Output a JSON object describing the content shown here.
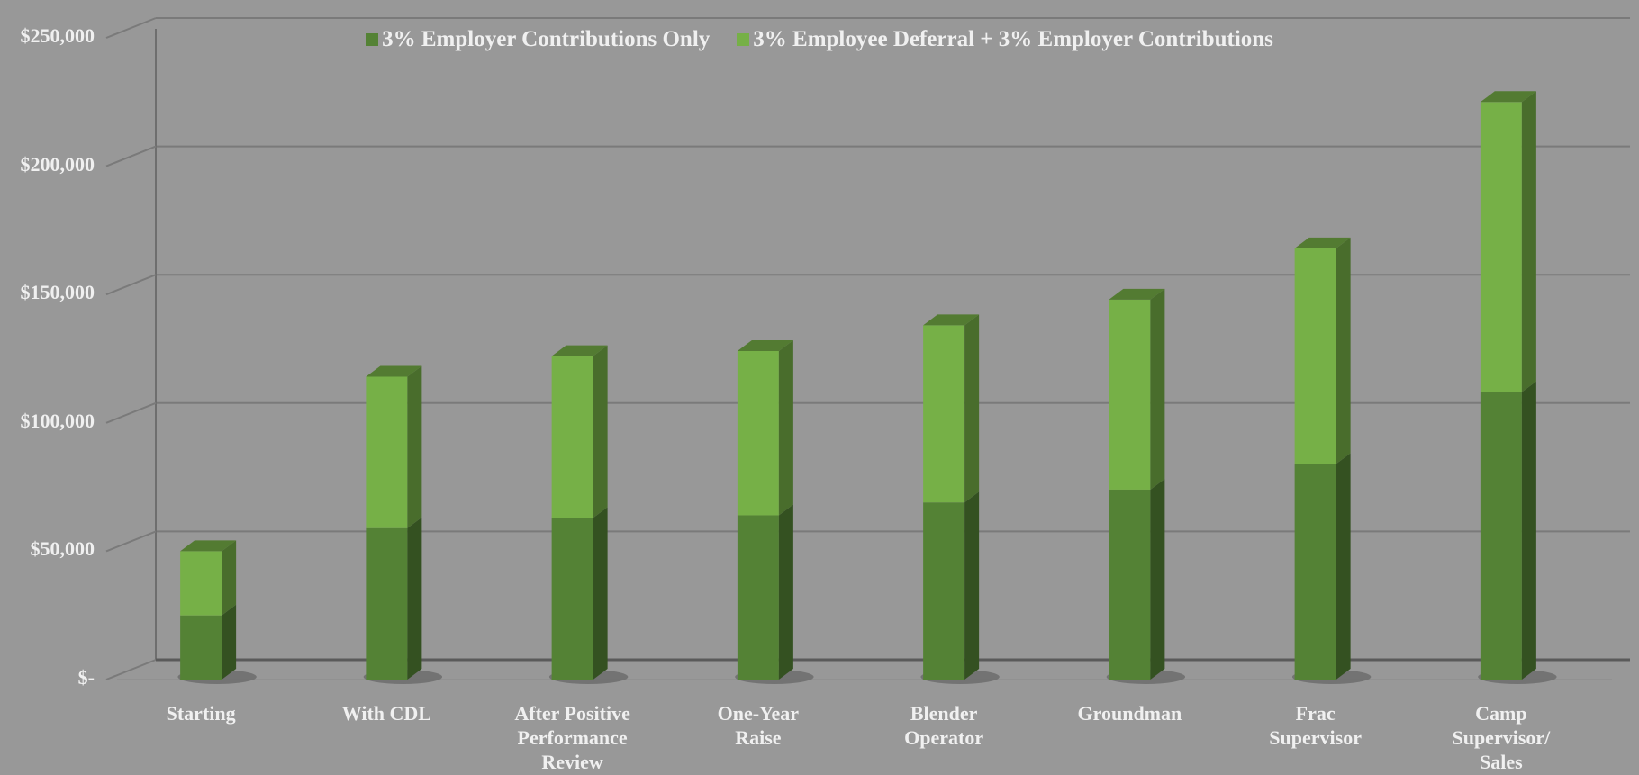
{
  "chart_data": {
    "type": "bar",
    "stacked": true,
    "style": "3d-column",
    "title": "",
    "xlabel": "",
    "ylabel": "",
    "ylim": [
      0,
      250000
    ],
    "yticks": [
      0,
      50000,
      100000,
      150000,
      200000,
      250000
    ],
    "ytick_labels": [
      "$-",
      "$50,000",
      "$100,000",
      "$150,000",
      "$200,000",
      "$250,000"
    ],
    "grid": true,
    "legend_position": "top",
    "categories": [
      "Starting",
      "With CDL",
      "After Positive\nPerformance\nReview",
      "One-Year\nRaise",
      "Blender\nOperator",
      "Groundman",
      "Frac\nSupervisor",
      "Camp\nSupervisor/\nSales"
    ],
    "series": [
      {
        "name": "3% Employer Contributions Only",
        "color": "#548235",
        "values": [
          25000,
          59000,
          63000,
          64000,
          69000,
          74000,
          84000,
          112000
        ]
      },
      {
        "name": "3% Employee Deferral + 3% Employer Contributions",
        "color": "#76b047",
        "values": [
          25000,
          59000,
          63000,
          64000,
          69000,
          74000,
          84000,
          113000
        ]
      }
    ]
  },
  "colors": {
    "background": "#989898",
    "gridline": "#7a7a7a",
    "text": "#f0f0f0",
    "dark_green": "#548235",
    "light_green": "#76b047"
  }
}
